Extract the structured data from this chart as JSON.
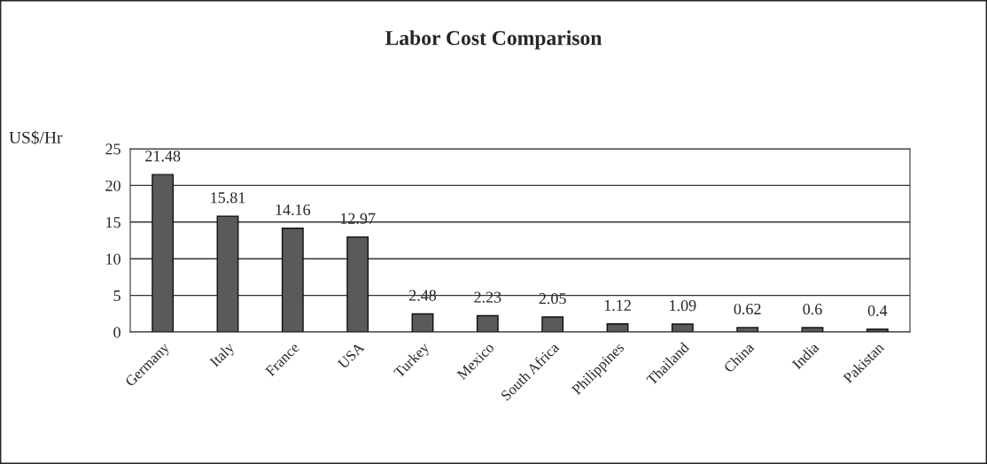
{
  "chart_data": {
    "type": "bar",
    "title": "Labor Cost Comparison",
    "ylabel": "US$/Hr",
    "categories": [
      "Germany",
      "Italy",
      "France",
      "USA",
      "Turkey",
      "Mexico",
      "South Africa",
      "Philippines",
      "Thailand",
      "China",
      "India",
      "Pakistan"
    ],
    "values": [
      21.48,
      15.81,
      14.16,
      12.97,
      2.48,
      2.23,
      2.05,
      1.12,
      1.09,
      0.62,
      0.6,
      0.4
    ],
    "color": "#5a5a5a",
    "ylim": [
      0,
      25
    ],
    "yticks": [
      0,
      5,
      10,
      15,
      20,
      25
    ],
    "grid": "y",
    "data_labels": true
  }
}
